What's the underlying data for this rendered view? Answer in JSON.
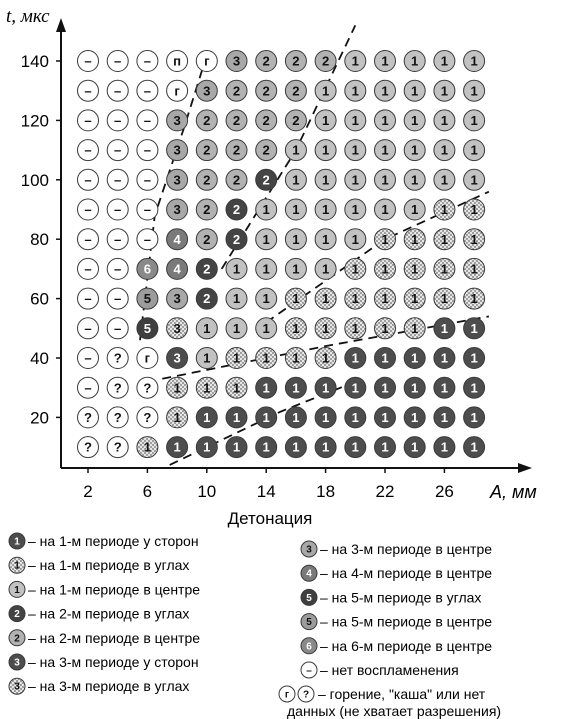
{
  "chart_data": {
    "type": "scatter",
    "title": "",
    "xlabel": "A, мм",
    "ylabel": "t, мкс",
    "caption": "Детонация",
    "x_ticks": [
      "2",
      "6",
      "10",
      "14",
      "18",
      "22",
      "26"
    ],
    "y_ticks": [
      "20",
      "40",
      "60",
      "80",
      "100",
      "120",
      "140"
    ],
    "x_values": [
      2,
      4,
      6,
      8,
      10,
      12,
      14,
      16,
      18,
      20,
      22,
      24,
      26,
      28
    ],
    "y_values": [
      140,
      130,
      120,
      110,
      100,
      90,
      80,
      70,
      60,
      50,
      40,
      30,
      20,
      10
    ],
    "xlim": [
      -1,
      30
    ],
    "ylim": [
      2,
      152
    ],
    "grid": false,
    "legend_position": "bottom",
    "markers": {
      "s1": {
        "label": "1",
        "fill": "#4d4d4d",
        "text": "#ffffff",
        "hatch": false
      },
      "c1": {
        "label": "1",
        "fill": "#c2c2c2",
        "text": "#111111",
        "hatch": false
      },
      "h1": {
        "label": "1",
        "fill": "#e2e2e2",
        "text": "#111111",
        "hatch": true
      },
      "a2": {
        "label": "2",
        "fill": "#444444",
        "text": "#ffffff",
        "hatch": false
      },
      "c2": {
        "label": "2",
        "fill": "#b2b2b2",
        "text": "#111111",
        "hatch": false
      },
      "s3": {
        "label": "3",
        "fill": "#4d4d4d",
        "text": "#ffffff",
        "hatch": false
      },
      "c3": {
        "label": "3",
        "fill": "#a8a8a8",
        "text": "#111111",
        "hatch": false
      },
      "h3": {
        "label": "3",
        "fill": "#e2e2e2",
        "text": "#111111",
        "hatch": true
      },
      "c4": {
        "label": "4",
        "fill": "#7a7a7a",
        "text": "#ffffff",
        "hatch": false
      },
      "a5": {
        "label": "5",
        "fill": "#3f3f3f",
        "text": "#ffffff",
        "hatch": false
      },
      "c5": {
        "label": "5",
        "fill": "#9c9c9c",
        "text": "#111111",
        "hatch": false
      },
      "c6": {
        "label": "6",
        "fill": "#8a8a8a",
        "text": "#ffffff",
        "hatch": false
      },
      "n": {
        "label": "–",
        "fill": "#ffffff",
        "text": "#111111",
        "hatch": false
      },
      "g": {
        "label": "г",
        "fill": "#ffffff",
        "text": "#111111",
        "hatch": false
      },
      "q": {
        "label": "?",
        "fill": "#ffffff",
        "text": "#111111",
        "hatch": false
      },
      "p": {
        "label": "п",
        "fill": "#ffffff",
        "text": "#111111",
        "hatch": false
      }
    },
    "grid_rows": [
      {
        "t": 140,
        "cells": [
          "n",
          "n",
          "n",
          "p",
          "g",
          "c3",
          "c2",
          "c2",
          "c2",
          "c1",
          "c1",
          "c1",
          "c1",
          "c1"
        ]
      },
      {
        "t": 130,
        "cells": [
          "n",
          "n",
          "n",
          "g",
          "c3",
          "c2",
          "c2",
          "c2",
          "c1",
          "c1",
          "c1",
          "c1",
          "c1",
          "c1"
        ]
      },
      {
        "t": 120,
        "cells": [
          "n",
          "n",
          "n",
          "c3",
          "c2",
          "c2",
          "c2",
          "c2",
          "c1",
          "c1",
          "c1",
          "c1",
          "c1",
          "c1"
        ]
      },
      {
        "t": 110,
        "cells": [
          "n",
          "n",
          "n",
          "c3",
          "c2",
          "c2",
          "c2",
          "c1",
          "c1",
          "c1",
          "c1",
          "c1",
          "c1",
          "c1"
        ]
      },
      {
        "t": 100,
        "cells": [
          "n",
          "n",
          "n",
          "c3",
          "c2",
          "c2",
          "a2",
          "c1",
          "c1",
          "c1",
          "c1",
          "c1",
          "c1",
          "c1"
        ]
      },
      {
        "t": 90,
        "cells": [
          "n",
          "n",
          "n",
          "c3",
          "c2",
          "a2",
          "c1",
          "c1",
          "c1",
          "c1",
          "c1",
          "c1",
          "h1",
          "h1"
        ]
      },
      {
        "t": 80,
        "cells": [
          "n",
          "n",
          "n",
          "c4",
          "c2",
          "a2",
          "c1",
          "c1",
          "c1",
          "c1",
          "h1",
          "h1",
          "h1",
          "h1"
        ]
      },
      {
        "t": 70,
        "cells": [
          "n",
          "n",
          "c6",
          "c4",
          "a2",
          "c1",
          "c1",
          "c1",
          "c1",
          "h1",
          "h1",
          "h1",
          "h1",
          "h1"
        ]
      },
      {
        "t": 60,
        "cells": [
          "n",
          "n",
          "c5",
          "c3",
          "a2",
          "c1",
          "c1",
          "h1",
          "h1",
          "h1",
          "h1",
          "h1",
          "h1",
          "h1"
        ]
      },
      {
        "t": 50,
        "cells": [
          "n",
          "n",
          "a5",
          "h3",
          "c1",
          "c1",
          "c1",
          "h1",
          "h1",
          "h1",
          "h1",
          "h1",
          "s1",
          "s1"
        ]
      },
      {
        "t": 40,
        "cells": [
          "n",
          "q",
          "g",
          "s3",
          "c1",
          "h1",
          "h1",
          "h1",
          "h1",
          "s1",
          "s1",
          "s1",
          "s1",
          "s1"
        ]
      },
      {
        "t": 30,
        "cells": [
          "n",
          "q",
          "q",
          "h1",
          "h1",
          "h1",
          "s1",
          "s1",
          "s1",
          "s1",
          "s1",
          "s1",
          "s1",
          "s1"
        ]
      },
      {
        "t": 20,
        "cells": [
          "q",
          "q",
          "q",
          "h1",
          "s1",
          "s1",
          "s1",
          "s1",
          "s1",
          "s1",
          "s1",
          "s1",
          "s1",
          "s1"
        ]
      },
      {
        "t": 10,
        "cells": [
          "q",
          "q",
          "h1",
          "s1",
          "s1",
          "s1",
          "s1",
          "s1",
          "s1",
          "s1",
          "s1",
          "s1",
          "s1",
          "s1"
        ]
      }
    ],
    "boundary_lines": [
      {
        "points": [
          [
            5.5,
            46
          ],
          [
            6.5,
            88
          ],
          [
            8.5,
            118
          ],
          [
            10,
            142
          ]
        ]
      },
      {
        "points": [
          [
            11,
            70
          ],
          [
            16,
            110
          ],
          [
            20,
            152
          ]
        ]
      },
      {
        "points": [
          [
            14,
            52
          ],
          [
            22,
            80
          ],
          [
            29,
            96
          ]
        ]
      },
      {
        "points": [
          [
            7,
            33
          ],
          [
            18,
            44
          ],
          [
            29,
            54
          ]
        ]
      },
      {
        "points": [
          [
            7.5,
            4
          ],
          [
            15,
            22
          ],
          [
            20,
            32
          ]
        ]
      }
    ]
  },
  "legend": [
    {
      "marker": "s1",
      "label": "1",
      "text": "– на  1-м  периоде  у сторон"
    },
    {
      "marker": "h1",
      "label": "1",
      "text": "– на  1-м  периоде  в  углах"
    },
    {
      "marker": "c1",
      "label": "1",
      "text": "– на  1-м  периоде  в  центре"
    },
    {
      "marker": "a2",
      "label": "2",
      "text": "– на  2-м  периоде  в  углах"
    },
    {
      "marker": "c2",
      "label": "2",
      "text": "– на  2-м  периоде  в  центре"
    },
    {
      "marker": "s3",
      "label": "3",
      "text": "– на  3-м  периоде  у сторон"
    },
    {
      "marker": "h3",
      "label": "3",
      "text": "– на  3-м  периоде  в  углах"
    },
    {
      "marker": "c3",
      "label": "3",
      "text": "– на  3-м  периоде  в  центре"
    },
    {
      "marker": "c4",
      "label": "4",
      "text": "– на  4-м  периоде  в  центре"
    },
    {
      "marker": "a5",
      "label": "5",
      "text": "– на  5-м  периоде  в  углах"
    },
    {
      "marker": "c5",
      "label": "5",
      "text": "– на  5-м  периоде  в  центре"
    },
    {
      "marker": "c6",
      "label": "6",
      "text": "– на  6-м  периоде  в  центре"
    },
    {
      "marker": "n",
      "label": "–",
      "text": "– нет  воспламенения"
    }
  ],
  "legend_last": {
    "markers": [
      "g",
      "q"
    ],
    "line1": "– горение,  \"каша\"  или  нет",
    "line2": "данных (не хватает разрешения)"
  }
}
